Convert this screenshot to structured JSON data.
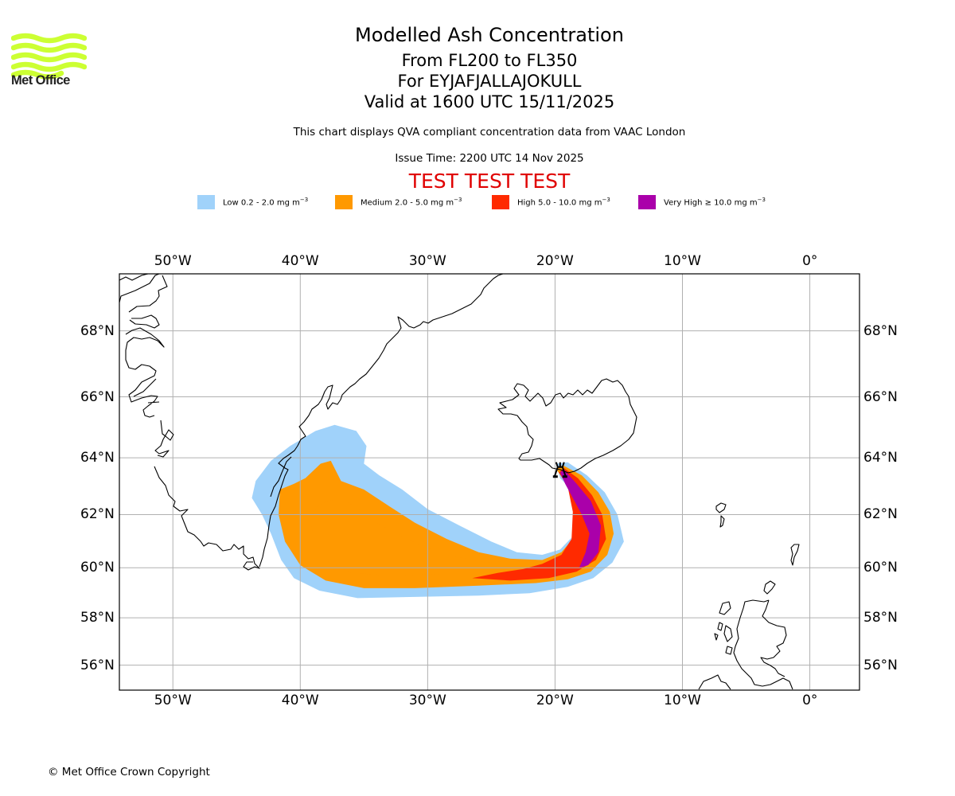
{
  "logo": {
    "name": "Met Office",
    "icon": "met-office-wave-logo",
    "color": "#ccff33"
  },
  "header": {
    "title": "Modelled Ash Concentration",
    "flight_levels": "From FL200 to FL350",
    "volcano": "For EYJAFJALLAJOKULL",
    "valid_time": "Valid at 1600 UTC 15/11/2025",
    "subtitle": "This chart displays QVA compliant concentration data from VAAC London",
    "issue_time": "Issue Time: 2200 UTC 14 Nov 2025",
    "test_banner": "TEST TEST TEST"
  },
  "legend": [
    {
      "label": "Low 0.2 - 2.0 mg m",
      "unit_exp": "−3",
      "color": "#a0d2fa"
    },
    {
      "label": "Medium 2.0 - 5.0 mg m",
      "unit_exp": "−3",
      "color": "#ff9900"
    },
    {
      "label": "High 5.0 - 10.0 mg m",
      "unit_exp": "−3",
      "color": "#ff2a00"
    },
    {
      "label": "Very High  ≥  10.0 mg m",
      "unit_exp": "−3",
      "color": "#aa00aa"
    }
  ],
  "map": {
    "volcano_icon": "volcano-icon",
    "volcano_location": {
      "lon": -19.6,
      "lat": 63.63
    },
    "extent": {
      "lon_min": -54.2,
      "lon_max": 3.9,
      "lat_min": 54.9,
      "lat_max": 69.6
    },
    "lon_ticks": [
      {
        "value": -50,
        "label": "50°W"
      },
      {
        "value": -40,
        "label": "40°W"
      },
      {
        "value": -30,
        "label": "30°W"
      },
      {
        "value": -20,
        "label": "20°W"
      },
      {
        "value": -10,
        "label": "10°W"
      },
      {
        "value": 0,
        "label": "0°"
      }
    ],
    "lat_ticks": [
      {
        "value": 68,
        "label": "68°N"
      },
      {
        "value": 66,
        "label": "66°N"
      },
      {
        "value": 64,
        "label": "64°N"
      },
      {
        "value": 62,
        "label": "62°N"
      },
      {
        "value": 60,
        "label": "60°N"
      },
      {
        "value": 58,
        "label": "58°N"
      },
      {
        "value": 56,
        "label": "56°N"
      }
    ],
    "grid_color": "#b0b0b0",
    "ash_levels": [
      {
        "name": "low",
        "color": "#a0d2fa",
        "polygons": [
          [
            [
              -43.5,
              63.2
            ],
            [
              -43.8,
              62.6
            ],
            [
              -43.0,
              62.0
            ],
            [
              -42.3,
              61.3
            ],
            [
              -41.5,
              60.3
            ],
            [
              -40.5,
              59.6
            ],
            [
              -38.5,
              59.1
            ],
            [
              -35.5,
              58.8
            ],
            [
              -31,
              58.85
            ],
            [
              -26,
              58.9
            ],
            [
              -22,
              59.0
            ],
            [
              -19,
              59.25
            ],
            [
              -17,
              59.6
            ],
            [
              -15.5,
              60.2
            ],
            [
              -14.6,
              61.0
            ],
            [
              -15.1,
              62.0
            ],
            [
              -16.1,
              62.8
            ],
            [
              -17.5,
              63.4
            ],
            [
              -19.0,
              63.85
            ],
            [
              -19.9,
              63.8
            ],
            [
              -19.6,
              63.3
            ],
            [
              -18.7,
              62.9
            ],
            [
              -18.4,
              62.0
            ],
            [
              -18.6,
              61.2
            ],
            [
              -19.6,
              60.7
            ],
            [
              -21,
              60.5
            ],
            [
              -23,
              60.6
            ],
            [
              -25,
              61.0
            ],
            [
              -27.5,
              61.6
            ],
            [
              -30,
              62.2
            ],
            [
              -32,
              62.9
            ],
            [
              -33.8,
              63.4
            ],
            [
              -35.0,
              63.8
            ],
            [
              -34.8,
              64.4
            ],
            [
              -35.6,
              64.9
            ],
            [
              -37.3,
              65.1
            ],
            [
              -38.8,
              64.9
            ],
            [
              -40.8,
              64.4
            ],
            [
              -42.3,
              63.9
            ]
          ]
        ]
      },
      {
        "name": "medium",
        "color": "#ff9900",
        "polygons": [
          [
            [
              -41.6,
              62.9
            ],
            [
              -41.7,
              62.0
            ],
            [
              -41.2,
              61.0
            ],
            [
              -40.0,
              60.1
            ],
            [
              -38,
              59.5
            ],
            [
              -35,
              59.2
            ],
            [
              -31,
              59.2
            ],
            [
              -26,
              59.3
            ],
            [
              -21.5,
              59.4
            ],
            [
              -19,
              59.55
            ],
            [
              -17.2,
              59.85
            ],
            [
              -15.9,
              60.5
            ],
            [
              -15.4,
              61.3
            ],
            [
              -15.7,
              62.1
            ],
            [
              -16.6,
              62.8
            ],
            [
              -17.9,
              63.4
            ],
            [
              -19.4,
              63.75
            ],
            [
              -19.9,
              63.6
            ],
            [
              -18.9,
              63.0
            ],
            [
              -18.5,
              62.0
            ],
            [
              -18.6,
              61.1
            ],
            [
              -19.5,
              60.6
            ],
            [
              -21,
              60.3
            ],
            [
              -23.5,
              60.35
            ],
            [
              -26,
              60.6
            ],
            [
              -28.5,
              61.1
            ],
            [
              -31,
              61.7
            ],
            [
              -33,
              62.3
            ],
            [
              -35.0,
              62.9
            ],
            [
              -36.8,
              63.2
            ],
            [
              -37.6,
              63.9
            ],
            [
              -38.4,
              63.8
            ],
            [
              -39.6,
              63.3
            ],
            [
              -40.5,
              63.1
            ]
          ],
          [
            [
              -39.2,
              61.9
            ],
            [
              -39.0,
              61.2
            ],
            [
              -38.0,
              60.3
            ],
            [
              -36,
              59.8
            ],
            [
              -33,
              59.7
            ],
            [
              -29,
              59.75
            ],
            [
              -25,
              59.8
            ],
            [
              -21.5,
              59.9
            ],
            [
              -23,
              60.3
            ],
            [
              -25.5,
              60.2
            ],
            [
              -28.5,
              60.5
            ],
            [
              -30.7,
              60.9
            ],
            [
              -32,
              61.2
            ],
            [
              -34,
              61.7
            ],
            [
              -35.4,
              62.2
            ],
            [
              -36.8,
              62.6
            ],
            [
              -37.8,
              62.5
            ],
            [
              -38.6,
              62.3
            ]
          ]
        ]
      },
      {
        "name": "high",
        "color": "#ff2a00",
        "polygons": [
          [
            [
              -26.5,
              59.6
            ],
            [
              -23.5,
              59.5
            ],
            [
              -20.5,
              59.6
            ],
            [
              -18.3,
              59.85
            ],
            [
              -16.8,
              60.3
            ],
            [
              -16.0,
              61.1
            ],
            [
              -16.3,
              62.0
            ],
            [
              -17.1,
              62.7
            ],
            [
              -18.2,
              63.3
            ],
            [
              -19.3,
              63.65
            ],
            [
              -19.7,
              63.5
            ],
            [
              -19.0,
              63.0
            ],
            [
              -18.6,
              62.1
            ],
            [
              -18.7,
              61.1
            ],
            [
              -19.5,
              60.5
            ],
            [
              -21,
              60.15
            ],
            [
              -22.5,
              59.95
            ],
            [
              -24.5,
              59.8
            ]
          ]
        ]
      },
      {
        "name": "very_high",
        "color": "#aa00aa",
        "polygons": [
          [
            [
              -19.3,
              63.6
            ],
            [
              -18.3,
              63.1
            ],
            [
              -17.2,
              62.5
            ],
            [
              -16.4,
              61.6
            ],
            [
              -16.6,
              60.6
            ],
            [
              -17.4,
              60.1
            ],
            [
              -18.1,
              60.0
            ],
            [
              -17.6,
              60.6
            ],
            [
              -17.3,
              61.3
            ],
            [
              -17.9,
              62.0
            ],
            [
              -18.6,
              62.6
            ],
            [
              -19.2,
              63.1
            ],
            [
              -19.6,
              63.5
            ]
          ]
        ]
      }
    ]
  },
  "footer": {
    "copyright": "© Met Office Crown Copyright"
  }
}
